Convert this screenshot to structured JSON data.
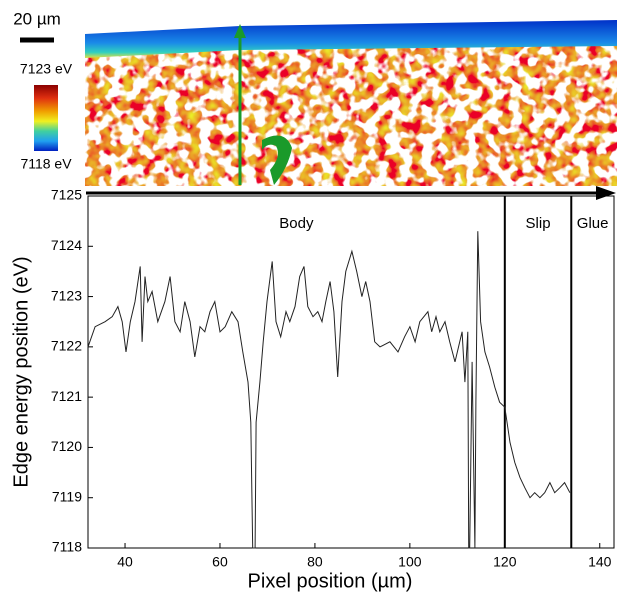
{
  "image": {
    "scale_bar": "20 µm",
    "colorbar": {
      "max_label": "7123 eV",
      "min_label": "7118 eV"
    }
  },
  "chart_data": {
    "type": "line",
    "xlabel": "Pixel position (µm)",
    "ylabel": "Edge energy position (eV)",
    "x": [
      32.2,
      33.7,
      35.8,
      37.3,
      38.5,
      39.4,
      40.2,
      41.1,
      42.1,
      43.2,
      43.6,
      44.2,
      44.8,
      45.7,
      46.9,
      48.4,
      49.5,
      50.5,
      51.6,
      52.6,
      53.7,
      54.7,
      55.8,
      56.8,
      57.9,
      58.9,
      60.0,
      61.1,
      62.5,
      63.8,
      64.8,
      65.9,
      66.5,
      66.9,
      67.4,
      67.6,
      68.4,
      69.1,
      69.9,
      71.0,
      71.8,
      72.8,
      73.9,
      74.7,
      75.8,
      76.8,
      77.7,
      78.5,
      79.6,
      80.6,
      81.5,
      82.3,
      83.2,
      84.0,
      84.8,
      85.7,
      86.5,
      87.8,
      88.8,
      89.9,
      90.7,
      91.6,
      92.6,
      93.7,
      95.8,
      97.5,
      98.9,
      100.0,
      101.1,
      102.1,
      103.8,
      104.6,
      105.5,
      106.3,
      107.4,
      108.4,
      109.5,
      111.0,
      111.6,
      112.2,
      112.4,
      112.6,
      113.1,
      113.7,
      113.9,
      114.3,
      114.9,
      115.8,
      116.8,
      117.9,
      118.9,
      120.0,
      121.1,
      122.1,
      123.2,
      124.2,
      125.3,
      126.3,
      127.4,
      128.4,
      129.5,
      130.5,
      131.6,
      132.6,
      133.7
    ],
    "series": [
      {
        "color": "#222222",
        "values": [
          7122.0,
          7122.4,
          7122.5,
          7122.6,
          7122.8,
          7122.5,
          7121.9,
          7122.5,
          7122.9,
          7123.6,
          7122.1,
          7123.4,
          7122.9,
          7123.1,
          7122.5,
          7122.9,
          7123.4,
          7122.5,
          7122.3,
          7122.9,
          7122.5,
          7121.8,
          7122.4,
          7122.3,
          7122.7,
          7122.9,
          7122.3,
          7122.4,
          7122.7,
          7122.5,
          7121.9,
          7121.3,
          7120.5,
          7118.0,
          7118.0,
          7120.5,
          7121.3,
          7122.1,
          7122.9,
          7123.7,
          7122.5,
          7122.2,
          7122.7,
          7122.5,
          7122.8,
          7123.4,
          7123.6,
          7122.8,
          7122.6,
          7122.7,
          7122.5,
          7122.9,
          7123.3,
          7122.7,
          7121.4,
          7122.9,
          7123.5,
          7123.9,
          7123.5,
          7123.0,
          7123.3,
          7122.9,
          7122.1,
          7122.0,
          7122.1,
          7121.9,
          7122.2,
          7122.4,
          7122.1,
          7122.5,
          7122.7,
          7122.3,
          7122.6,
          7122.3,
          7122.5,
          7122.1,
          7121.7,
          7122.3,
          7121.3,
          7122.3,
          7118.0,
          7118.0,
          7121.7,
          7118.0,
          7120.9,
          7124.3,
          7122.5,
          7121.9,
          7121.6,
          7121.2,
          7120.9,
          7120.8,
          7120.1,
          7119.7,
          7119.4,
          7119.2,
          7119.0,
          7119.1,
          7119.0,
          7119.1,
          7119.3,
          7119.1,
          7119.2,
          7119.3,
          7119.1
        ]
      }
    ],
    "xlim": [
      32.2,
      143
    ],
    "ylim": [
      7118,
      7125
    ],
    "xticks": [
      40,
      60,
      80,
      100,
      120,
      140
    ],
    "yticks": [
      7118,
      7119,
      7120,
      7121,
      7122,
      7123,
      7124,
      7125
    ],
    "boundaries": [
      120,
      134
    ],
    "regions": [
      "Body",
      "Slip",
      "Glue"
    ]
  }
}
